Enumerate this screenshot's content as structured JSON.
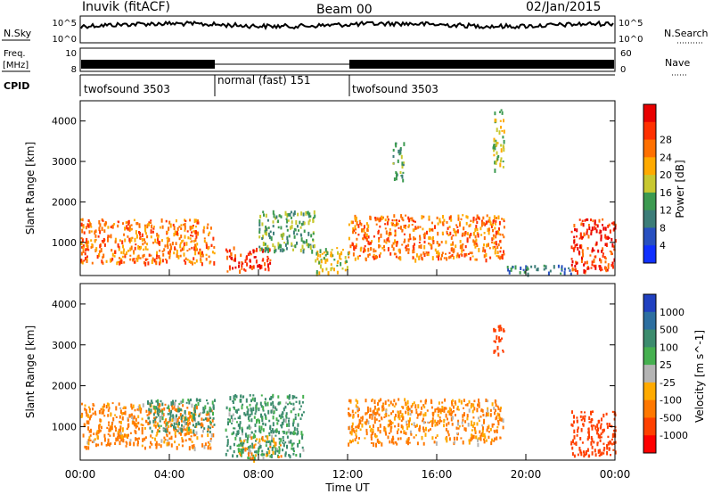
{
  "header": {
    "station": "Inuvik (fitACF)",
    "beam": "Beam 00",
    "date": "02/Jan/2015"
  },
  "panels": {
    "nsky": {
      "left_label": "N.Sky",
      "right_label": "N.Search",
      "ticks": [
        "10^5",
        "10^0"
      ]
    },
    "freq": {
      "left_label_line1": "Freq.",
      "left_label_line2": "[MHz]",
      "right_label": "Nave",
      "left_ticks": [
        "10",
        "8"
      ],
      "right_ticks": [
        "60",
        "0"
      ]
    },
    "cpid": {
      "label": "CPID",
      "segments": [
        {
          "label": "twofsound 3503",
          "start_hour": 0,
          "end_hour": 6
        },
        {
          "label": "normal (fast) 151",
          "start_hour": 6,
          "end_hour": 12
        },
        {
          "label": "twofsound 3503",
          "start_hour": 12,
          "end_hour": 24
        }
      ]
    }
  },
  "x_axis": {
    "label": "Time UT",
    "ticks": [
      "00:00",
      "04:00",
      "08:00",
      "12:00",
      "16:00",
      "20:00",
      "00:00"
    ],
    "range_hours": [
      0,
      24
    ]
  },
  "y_axis": {
    "label": "Slant Range [km]",
    "ticks": [
      "1000",
      "2000",
      "3000",
      "4000"
    ],
    "range_km": [
      180,
      4500
    ]
  },
  "colorbars": {
    "power": {
      "label": "Power [dB]",
      "ticks": [
        "4",
        "8",
        "12",
        "16",
        "20",
        "24",
        "28"
      ],
      "colors": [
        "#1030ff",
        "#2850c0",
        "#3c7d78",
        "#3c9a50",
        "#c8c830",
        "#ffaa00",
        "#ff7000",
        "#ff3000",
        "#e80000"
      ]
    },
    "velocity": {
      "label": "Velocity [m s^-1]",
      "ticks": [
        "1000",
        "500",
        "100",
        "25",
        "-25",
        "-100",
        "-500",
        "-1000"
      ],
      "colors": [
        "#2040c0",
        "#2d6fa0",
        "#3c8c6e",
        "#46b050",
        "#b4b4b4",
        "#ffaa00",
        "#ff7800",
        "#ff4000",
        "#ff0000"
      ]
    }
  },
  "chart_data": [
    {
      "type": "heatmap",
      "title": "Power [dB]",
      "xlabel": "Time UT",
      "ylabel": "Slant Range [km]",
      "xlim": [
        0,
        24
      ],
      "ylim": [
        180,
        4500
      ],
      "x_ticks": [
        "00:00",
        "04:00",
        "08:00",
        "12:00",
        "16:00",
        "20:00",
        "00:00"
      ],
      "y_ticks": [
        1000,
        2000,
        3000,
        4000
      ],
      "colorbar_ticks": [
        4,
        8,
        12,
        16,
        20,
        24,
        28
      ],
      "regions": [
        {
          "t0": 0.0,
          "t1": 6.0,
          "r0": 500,
          "r1": 1600,
          "value": 24
        },
        {
          "t0": 6.5,
          "t1": 8.5,
          "r0": 300,
          "r1": 900,
          "value": 28
        },
        {
          "t0": 8.0,
          "t1": 10.5,
          "r0": 800,
          "r1": 1800,
          "value": 12
        },
        {
          "t0": 10.5,
          "t1": 12.0,
          "r0": 250,
          "r1": 900,
          "value": 16
        },
        {
          "t0": 12.0,
          "t1": 19.0,
          "r0": 600,
          "r1": 1700,
          "value": 24
        },
        {
          "t0": 14.0,
          "t1": 14.5,
          "r0": 2500,
          "r1": 3500,
          "value": 12
        },
        {
          "t0": 18.5,
          "t1": 19.0,
          "r0": 2800,
          "r1": 4300,
          "value": 16
        },
        {
          "t0": 19.0,
          "t1": 22.0,
          "r0": 250,
          "r1": 450,
          "value": 8
        },
        {
          "t0": 22.0,
          "t1": 24.0,
          "r0": 300,
          "r1": 1600,
          "value": 28
        }
      ]
    },
    {
      "type": "heatmap",
      "title": "Velocity [m s^-1]",
      "xlabel": "Time UT",
      "ylabel": "Slant Range [km]",
      "xlim": [
        0,
        24
      ],
      "ylim": [
        180,
        4500
      ],
      "x_ticks": [
        "00:00",
        "04:00",
        "08:00",
        "12:00",
        "16:00",
        "20:00",
        "00:00"
      ],
      "y_ticks": [
        1000,
        2000,
        3000,
        4000
      ],
      "colorbar_ticks": [
        1000,
        500,
        100,
        25,
        -25,
        -100,
        -500,
        -1000
      ],
      "regions": [
        {
          "t0": 0.0,
          "t1": 6.0,
          "r0": 500,
          "r1": 1600,
          "value": -100
        },
        {
          "t0": 3.0,
          "t1": 6.0,
          "r0": 900,
          "r1": 1700,
          "value": 100
        },
        {
          "t0": 6.5,
          "t1": 10.0,
          "r0": 300,
          "r1": 1800,
          "value": 100
        },
        {
          "t0": 7.0,
          "t1": 9.0,
          "r0": 200,
          "r1": 800,
          "value": 0
        },
        {
          "t0": 12.0,
          "t1": 19.0,
          "r0": 600,
          "r1": 1700,
          "value": -100
        },
        {
          "t0": 18.5,
          "t1": 19.0,
          "r0": 2800,
          "r1": 3500,
          "value": -500
        },
        {
          "t0": 22.0,
          "t1": 24.0,
          "r0": 300,
          "r1": 1400,
          "value": -500
        }
      ]
    }
  ]
}
